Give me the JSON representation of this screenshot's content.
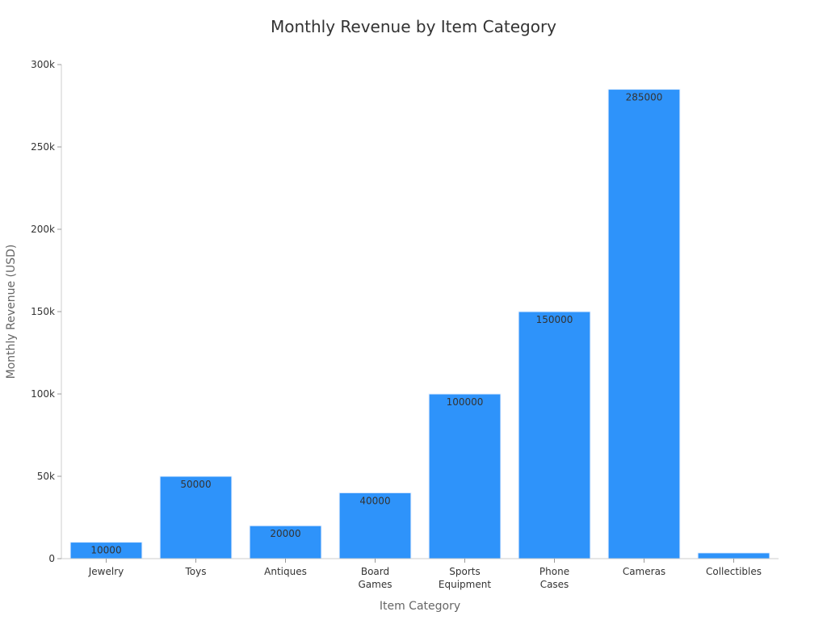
{
  "chart_data": {
    "type": "bar",
    "title": "Monthly Revenue by Item Category",
    "xlabel": "Item Category",
    "ylabel": "Monthly Revenue (USD)",
    "categories": [
      "Jewelry",
      "Toys",
      "Antiques",
      "Board Games",
      "Sports Equipment",
      "Phone Cases",
      "Cameras",
      "Collectibles"
    ],
    "tick_labels": [
      [
        "Jewelry"
      ],
      [
        "Toys"
      ],
      [
        "Antiques"
      ],
      [
        "Board",
        "Games"
      ],
      [
        "Sports",
        "Equipment"
      ],
      [
        "Phone",
        "Cases"
      ],
      [
        "Cameras"
      ],
      [
        "Collectibles"
      ]
    ],
    "values": [
      10000,
      50000,
      20000,
      40000,
      100000,
      150000,
      285000,
      3500
    ],
    "data_labels": [
      "10000",
      "50000",
      "20000",
      "40000",
      "100000",
      "150000",
      "285000",
      ""
    ],
    "ylim": [
      0,
      300000
    ],
    "yticks": [
      0,
      50000,
      100000,
      150000,
      200000,
      250000,
      300000
    ],
    "ytick_labels": [
      "0",
      "50k",
      "100k",
      "150k",
      "200k",
      "250k",
      "300k"
    ],
    "grid": false,
    "bar_color": "#2e93fa"
  }
}
